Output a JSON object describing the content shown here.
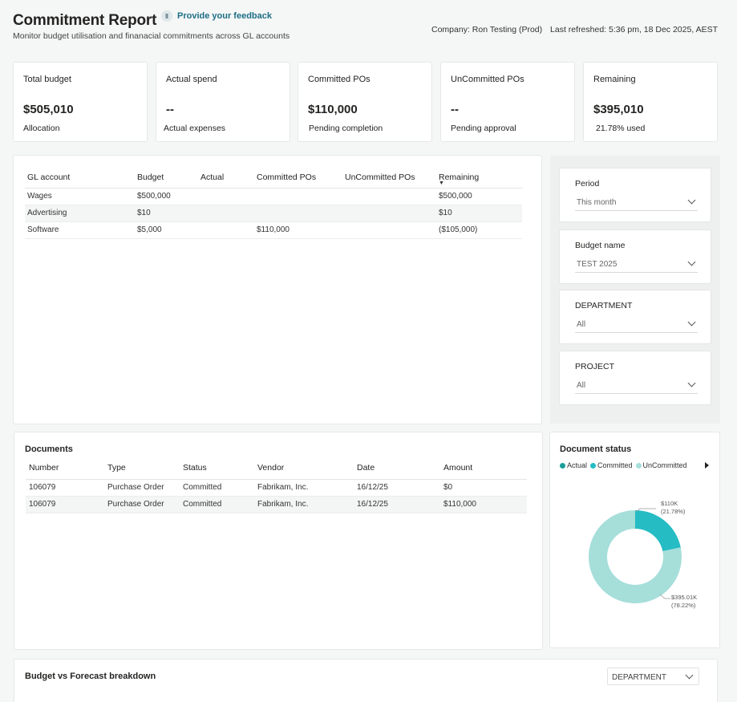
{
  "header": {
    "title": "Commitment Report",
    "feedback_icon": "feedback-icon",
    "feedback_label": "Provide your feedback",
    "subtitle": "Monitor budget utilisation and finanacial commitments across GL accounts",
    "company": "Company: Ron Testing (Prod)",
    "last_refreshed": "Last refreshed: 5:36 pm, 18 Dec 2025, AEST"
  },
  "kpis": [
    {
      "label": "Total budget",
      "value": "$505,010",
      "sub": "Allocation"
    },
    {
      "label": "Actual spend",
      "value": "--",
      "sub": "Actual expenses"
    },
    {
      "label": "Committed POs",
      "value": "$110,000",
      "sub": "Pending completion"
    },
    {
      "label": "UnCommitted POs",
      "value": "--",
      "sub": "Pending approval"
    },
    {
      "label": "Remaining",
      "value": "$395,010",
      "sub": "21.78% used"
    }
  ],
  "gl_table": {
    "headers": [
      "GL account",
      "Budget",
      "Actual",
      "Committed POs",
      "UnCommitted POs",
      "Remaining"
    ],
    "rows": [
      [
        "Wages",
        "$500,000",
        "",
        "",
        "",
        "$500,000"
      ],
      [
        "Advertising",
        "$10",
        "",
        "",
        "",
        "$10"
      ],
      [
        "Software",
        "$5,000",
        "",
        "$110,000",
        "",
        "($105,000)"
      ]
    ]
  },
  "filters": [
    {
      "label": "Period",
      "value": "This month"
    },
    {
      "label": "Budget name",
      "value": "TEST 2025"
    },
    {
      "label": "DEPARTMENT",
      "value": "All"
    },
    {
      "label": "PROJECT",
      "value": "All"
    }
  ],
  "documents": {
    "title": "Documents",
    "headers": [
      "Number",
      "Type",
      "Status",
      "Vendor",
      "Date",
      "Amount"
    ],
    "rows": [
      [
        "106079",
        "Purchase Order",
        "Committed",
        "Fabrikam, Inc.",
        "16/12/25",
        "$0"
      ],
      [
        "106079",
        "Purchase Order",
        "Committed",
        "Fabrikam, Inc.",
        "16/12/25",
        "$110,000"
      ]
    ]
  },
  "document_status": {
    "title": "Document status",
    "legend": [
      {
        "name": "Actual",
        "color": "#1a9e9a"
      },
      {
        "name": "Committed",
        "color": "#25bcc4"
      },
      {
        "name": "UnCommitted",
        "color": "#a6deda"
      }
    ],
    "labels": {
      "committed_value": "$110K",
      "committed_pct": "(21.78%)",
      "remaining_value": "$395.01K",
      "remaining_pct": "(78.22%)"
    }
  },
  "chart_data": {
    "type": "pie",
    "title": "Document status",
    "categories": [
      "Committed",
      "Remaining"
    ],
    "values": [
      110000,
      395010
    ],
    "colors": [
      "#25bcc4",
      "#a6deda"
    ],
    "legend": [
      "Actual",
      "Committed",
      "UnCommitted"
    ],
    "legend_position": "top-left"
  },
  "breakdown": {
    "title": "Budget vs Forecast breakdown",
    "select_value": "DEPARTMENT"
  }
}
